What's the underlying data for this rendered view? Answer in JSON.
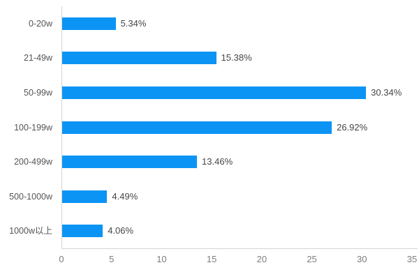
{
  "chart_data": {
    "type": "bar",
    "orientation": "horizontal",
    "title": "",
    "xlabel": "",
    "ylabel": "",
    "categories": [
      "0-20w",
      "21-49w",
      "50-99w",
      "100-199w",
      "200-499w",
      "500-1000w",
      "1000w以上"
    ],
    "values": [
      5.34,
      15.38,
      30.34,
      26.92,
      13.46,
      4.49,
      4.06
    ],
    "value_labels": [
      "5.34%",
      "15.38%",
      "30.34%",
      "26.92%",
      "13.46%",
      "4.49%",
      "4.06%"
    ],
    "xlim": [
      0,
      35
    ],
    "x_ticks": [
      "0",
      "5",
      "10",
      "15",
      "20",
      "25",
      "30",
      "35"
    ],
    "grid": false,
    "legend": false,
    "colors": {
      "bar": "#0c94f4",
      "axis_line": "#d4d4d4",
      "category_label": "#555555",
      "value_label": "#454545",
      "tick_label": "#7d7d7d",
      "background": "#ffffff"
    }
  }
}
